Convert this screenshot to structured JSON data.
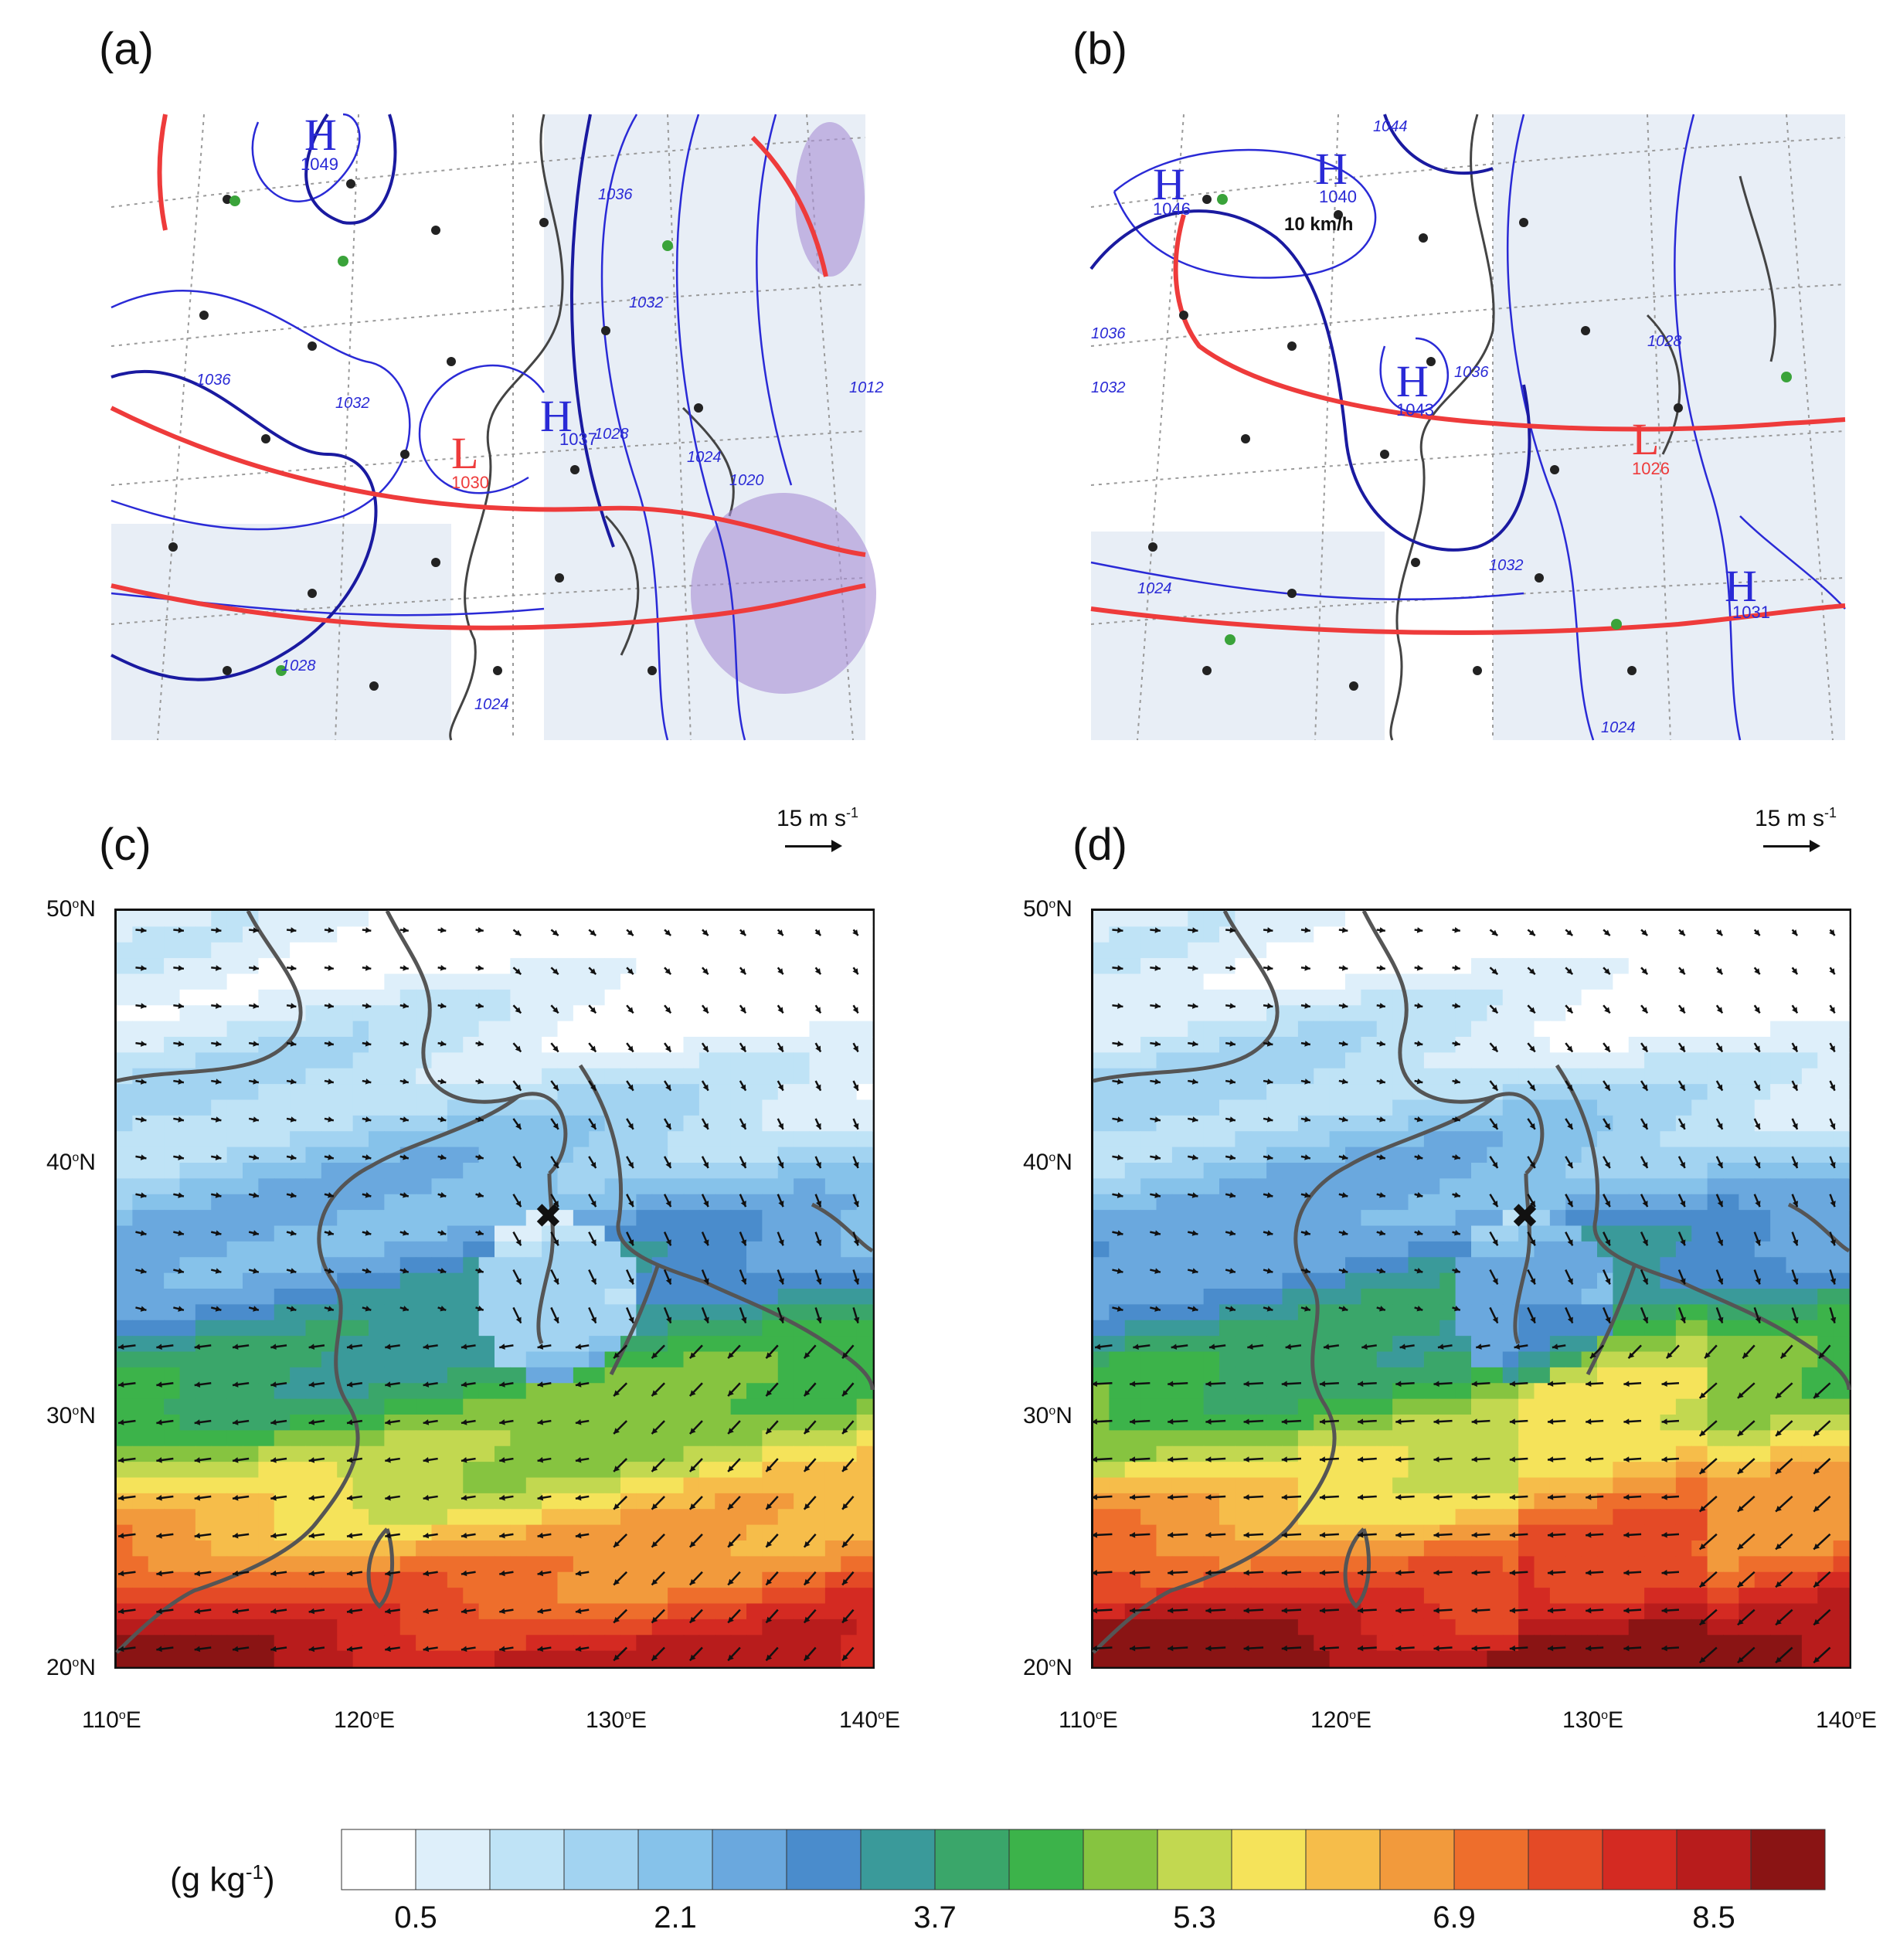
{
  "panels": {
    "a": {
      "label": "(a)",
      "highs": [
        {
          "sym": "H",
          "val": "1049"
        },
        {
          "sym": "H",
          "val": "1037"
        }
      ],
      "lows": [
        {
          "sym": "L",
          "val": "1030"
        }
      ],
      "isobars": [
        "1036",
        "1032",
        "1028",
        "1024",
        "1020",
        "1012",
        "1036",
        "1032",
        "1028",
        "1024"
      ]
    },
    "b": {
      "label": "(b)",
      "highs": [
        {
          "sym": "H",
          "val": "1046"
        },
        {
          "sym": "H",
          "val": "1040"
        },
        {
          "sym": "H",
          "val": "1043"
        },
        {
          "sym": "H",
          "val": "1031"
        }
      ],
      "lows": [
        {
          "sym": "L",
          "val": "1026"
        }
      ],
      "isobars": [
        "1044",
        "1036",
        "1032",
        "1036",
        "1032",
        "1028",
        "1024",
        "1024"
      ],
      "wind_note": "10 km/h"
    },
    "c": {
      "label": "(c)"
    },
    "d": {
      "label": "(d)"
    }
  },
  "reference_vector": {
    "label": "15 m s",
    "exp": "-1"
  },
  "axes": {
    "lat_ticks": [
      {
        "deg": "50",
        "hem": "N"
      },
      {
        "deg": "40",
        "hem": "N"
      },
      {
        "deg": "30",
        "hem": "N"
      },
      {
        "deg": "20",
        "hem": "N"
      }
    ],
    "lon_ticks": [
      {
        "deg": "110",
        "hem": "E"
      },
      {
        "deg": "120",
        "hem": "E"
      },
      {
        "deg": "130",
        "hem": "E"
      },
      {
        "deg": "140",
        "hem": "E"
      }
    ],
    "lat_values": [
      50,
      40,
      30,
      20
    ],
    "lon_values": [
      110,
      120,
      130,
      140
    ]
  },
  "colorbar": {
    "unit_prefix": "(g kg",
    "unit_exp": "-1",
    "unit_suffix": ")",
    "tick_labels": [
      "0.5",
      "2.1",
      "3.7",
      "5.3",
      "6.9",
      "8.5"
    ],
    "colors": [
      "#ffffff",
      "#deeffa",
      "#bfe3f6",
      "#a2d3f1",
      "#86c2ea",
      "#6aa8de",
      "#4a8ccc",
      "#3a9a9a",
      "#3aa66a",
      "#3cb34a",
      "#86c440",
      "#c2d850",
      "#f5e35a",
      "#f6bd4a",
      "#f29a3c",
      "#ee6e2c",
      "#e44a26",
      "#d42a22",
      "#b81c1c",
      "#8a1414"
    ]
  },
  "chart_data": [
    {
      "type": "heatmap",
      "title": "(c)",
      "xlabel": "",
      "ylabel": "",
      "xlim": [
        110,
        140
      ],
      "ylim": [
        20,
        50
      ],
      "x_ticks": [
        "110°E",
        "120°E",
        "130°E",
        "140°E"
      ],
      "y_ticks": [
        "20°N",
        "30°N",
        "40°N",
        "50°N"
      ],
      "color_levels": [
        0.5,
        2.1,
        3.7,
        5.3,
        6.9,
        8.5
      ],
      "units": "(g kg-1)",
      "vector_reference": "15 m s-1"
    },
    {
      "type": "heatmap",
      "title": "(d)",
      "xlabel": "",
      "ylabel": "",
      "xlim": [
        110,
        140
      ],
      "ylim": [
        20,
        50
      ],
      "x_ticks": [
        "110°E",
        "120°E",
        "130°E",
        "140°E"
      ],
      "y_ticks": [
        "20°N",
        "30°N",
        "40°N",
        "50°N"
      ],
      "color_levels": [
        0.5,
        2.1,
        3.7,
        5.3,
        6.9,
        8.5
      ],
      "units": "(g kg-1)",
      "vector_reference": "15 m s-1"
    }
  ]
}
